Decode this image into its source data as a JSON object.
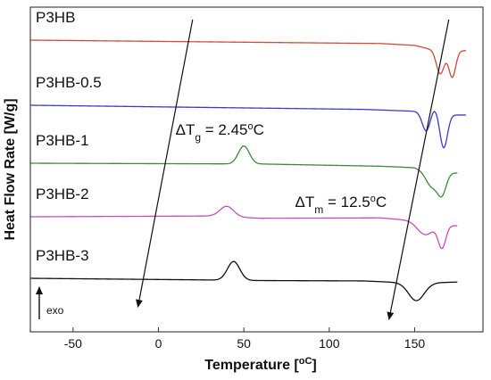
{
  "chart_data": {
    "type": "line",
    "xlabel": "Temperature [",
    "xlabel_unit": "oC",
    "xlabel_close": "]",
    "ylabel": "Heat  Flow  Rate [W/g]",
    "xlim": [
      -75,
      190
    ],
    "x_ticks": [
      -50,
      0,
      50,
      100,
      150
    ],
    "y_ticks_shown": false,
    "grid": false,
    "legend": "none",
    "series": [
      {
        "name": "P3HB",
        "color": "#d24b3a",
        "offset": 0,
        "baseline": [
          [
            -75,
            0.0
          ],
          [
            130,
            -0.9
          ],
          [
            150,
            -1.4
          ],
          [
            158,
            -2.3
          ],
          [
            175,
            -2.8
          ],
          [
            190,
            -2.8
          ]
        ],
        "peaks": [
          {
            "x": 165,
            "height": -6.5,
            "width": 2.3
          },
          {
            "x": 172,
            "height": -7.2,
            "width": 2.0
          }
        ]
      },
      {
        "name": "P3HB-0.5",
        "color": "#3a3ad6",
        "offset": -8.0,
        "baseline": [
          [
            -75,
            0.0
          ],
          [
            120,
            -1.1
          ],
          [
            150,
            -1.6
          ],
          [
            160,
            -2.3
          ],
          [
            175,
            -2.6
          ],
          [
            190,
            -2.6
          ]
        ],
        "peaks": [
          {
            "x": 157,
            "height": -5.2,
            "width": 2.4
          },
          {
            "x": 167,
            "height": -9.0,
            "width": 2.2
          },
          {
            "x": 161,
            "height": 2.0,
            "width": 2.4
          }
        ]
      },
      {
        "name": "P3HB-1",
        "color": "#3f8a3f",
        "offset": -16.0,
        "baseline": [
          [
            -75,
            0.0
          ],
          [
            60,
            -0.2
          ],
          [
            130,
            -0.8
          ],
          [
            150,
            -1.2
          ],
          [
            162,
            -2.4
          ],
          [
            175,
            -2.6
          ],
          [
            190,
            -2.6
          ]
        ],
        "peaks": [
          {
            "x": 50,
            "height": 4.8,
            "width": 3.2
          },
          {
            "x": 160,
            "height": -4.0,
            "width": 3.5
          },
          {
            "x": 166,
            "height": -5.5,
            "width": 2.5
          }
        ]
      },
      {
        "name": "P3HB-2",
        "color": "#c050c0",
        "offset": -24.0,
        "baseline": [
          [
            -75,
            0.0
          ],
          [
            30,
            0.2
          ],
          [
            60,
            -0.4
          ],
          [
            130,
            -0.3
          ],
          [
            148,
            -1.0
          ],
          [
            165,
            -2.2
          ],
          [
            175,
            -2.4
          ],
          [
            190,
            -2.4
          ]
        ],
        "peaks": [
          {
            "x": 40,
            "height": 2.8,
            "width": 4.0
          },
          {
            "x": 156,
            "height": -3.2,
            "width": 4.5
          },
          {
            "x": 166,
            "height": -6.0,
            "width": 2.2
          }
        ]
      },
      {
        "name": "P3HB-3",
        "color": "#111111",
        "offset": -32.0,
        "baseline": [
          [
            -75,
            0.0
          ],
          [
            20,
            -0.4
          ],
          [
            60,
            -0.6
          ],
          [
            120,
            -0.7
          ],
          [
            140,
            -1.1
          ],
          [
            160,
            -1.2
          ],
          [
            175,
            -1.0
          ],
          [
            190,
            -1.0
          ]
        ],
        "peaks": [
          {
            "x": 44,
            "height": 5.0,
            "width": 3.6
          },
          {
            "x": 151,
            "height": -4.8,
            "width": 4.6
          }
        ]
      }
    ],
    "annotations": [
      {
        "type": "arrow",
        "from": [
          20,
          3.5
        ],
        "to": [
          -12,
          -40
        ]
      },
      {
        "type": "arrow",
        "from": [
          170,
          3.5
        ],
        "to": [
          135,
          -42
        ]
      },
      {
        "type": "text",
        "text": "ΔT",
        "sub": "g",
        "rest": " = 2.45",
        "sup": "o",
        "tail": "C",
        "at": [
          10,
          -12
        ]
      },
      {
        "type": "text",
        "text": "ΔT",
        "sub": "m",
        "rest": " = 12.5",
        "sup": "o",
        "tail": "C",
        "at": [
          80,
          -22.5
        ]
      },
      {
        "type": "exo",
        "text": "exo"
      }
    ]
  }
}
